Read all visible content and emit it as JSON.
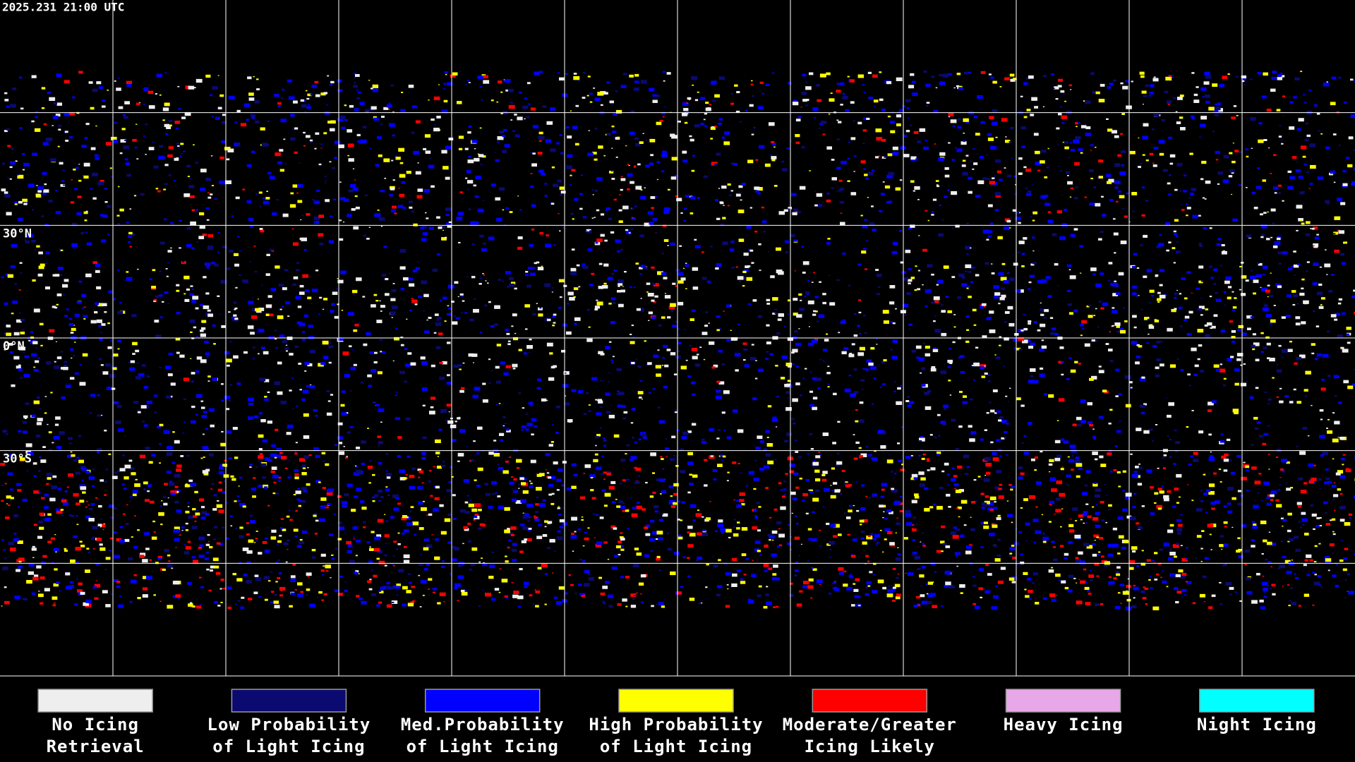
{
  "header": {
    "timestamp": "2025.231 21:00 UTC"
  },
  "map": {
    "lat_labels": [
      "30°N",
      "0°N",
      "30°S"
    ]
  },
  "legend": {
    "items": [
      {
        "label_lines": [
          "No Icing",
          "Retrieval"
        ],
        "color": "#eeeeee"
      },
      {
        "label_lines": [
          "Low Probability",
          "of Light Icing"
        ],
        "color": "#0a0a70"
      },
      {
        "label_lines": [
          "Med.Probability",
          "of Light Icing"
        ],
        "color": "#0000ff"
      },
      {
        "label_lines": [
          "High Probability",
          "of Light Icing"
        ],
        "color": "#ffff00"
      },
      {
        "label_lines": [
          "Moderate/Greater",
          "Icing Likely"
        ],
        "color": "#ff0000"
      },
      {
        "label_lines": [
          "Heavy Icing"
        ],
        "color": "#e8a8e8"
      },
      {
        "label_lines": [
          "Night Icing"
        ],
        "color": "#00ffff"
      }
    ]
  }
}
